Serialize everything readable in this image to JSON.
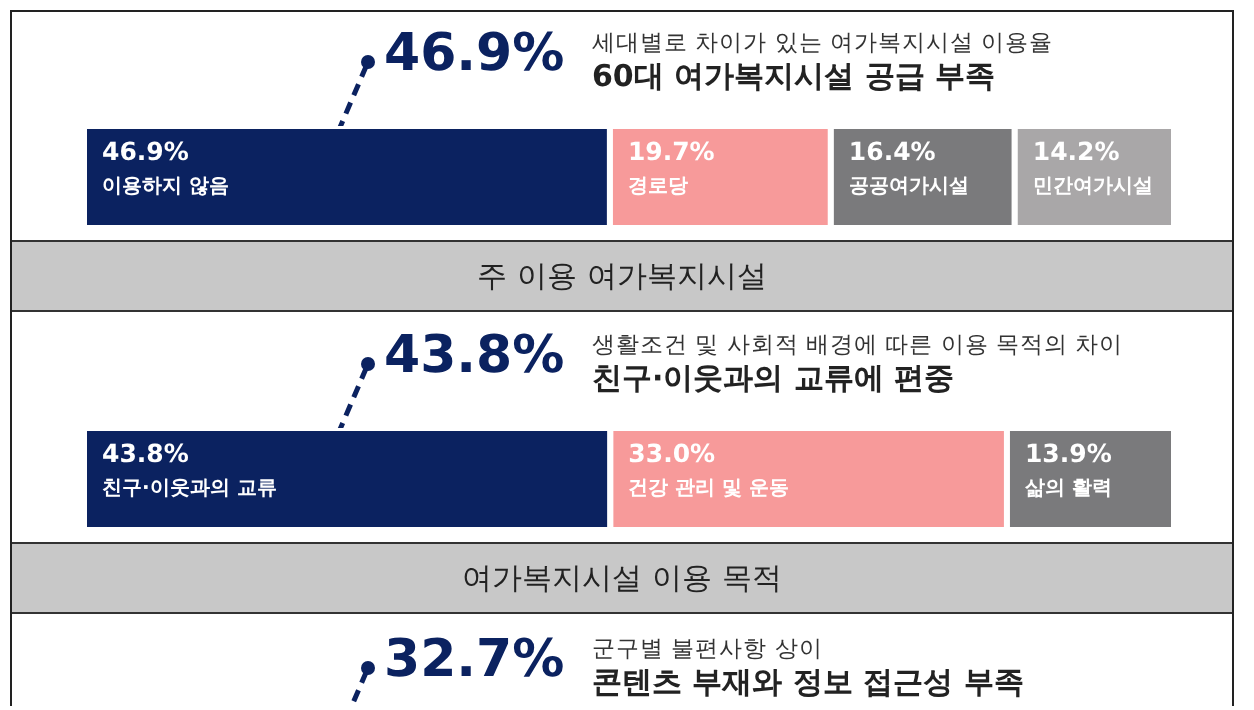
{
  "chart_data": [
    {
      "type": "bar",
      "orientation": "horizontal",
      "stacked": true,
      "title": "주 이용 여가복지시설",
      "annotations": [
        "46.9%",
        "세대별로 차이가 있는 여가복지시설 이용율",
        "60대 여가복지시설 공급 부족"
      ],
      "categories": [
        null
      ],
      "series": [
        {
          "name": "이용하지 않음",
          "color": "#0b2260",
          "values": [
            46.9
          ],
          "value_labels": [
            "46.9%"
          ]
        },
        {
          "name": "경로당",
          "color": "#f79a9a",
          "values": [
            19.7
          ],
          "value_labels": [
            "19.7%"
          ]
        },
        {
          "name": "공공여가시설",
          "color": "#7a7a7c",
          "values": [
            16.4
          ],
          "value_labels": [
            "16.4%"
          ]
        },
        {
          "name": "민간여가시설",
          "color": "#a9a7a8",
          "values": [
            14.2
          ],
          "value_labels": [
            "14.2%"
          ]
        }
      ]
    },
    {
      "type": "bar",
      "orientation": "horizontal",
      "stacked": true,
      "title": "여가복지시설 이용 목적",
      "annotations": [
        "43.8%",
        "생활조건 및 사회적 배경에 따른 이용 목적의 차이",
        "친구·이웃과의 교류에 편중"
      ],
      "categories": [
        null
      ],
      "series": [
        {
          "name": "친구·이웃과의 교류",
          "color": "#0b2260",
          "values": [
            43.8
          ],
          "value_labels": [
            "43.8%"
          ]
        },
        {
          "name": "건강 관리 및 운동",
          "color": "#f79a9a",
          "values": [
            33.0
          ],
          "value_labels": [
            "33.0%"
          ]
        },
        {
          "name": "삶의 활력",
          "color": "#7a7a7c",
          "values": [
            13.9
          ],
          "value_labels": [
            "13.9%"
          ]
        }
      ]
    },
    {
      "type": "other",
      "annotations": [
        "32.7%",
        "군구별 불편사항 상이",
        "콘텐츠 부재와 정보 접근성 부족"
      ]
    }
  ]
}
